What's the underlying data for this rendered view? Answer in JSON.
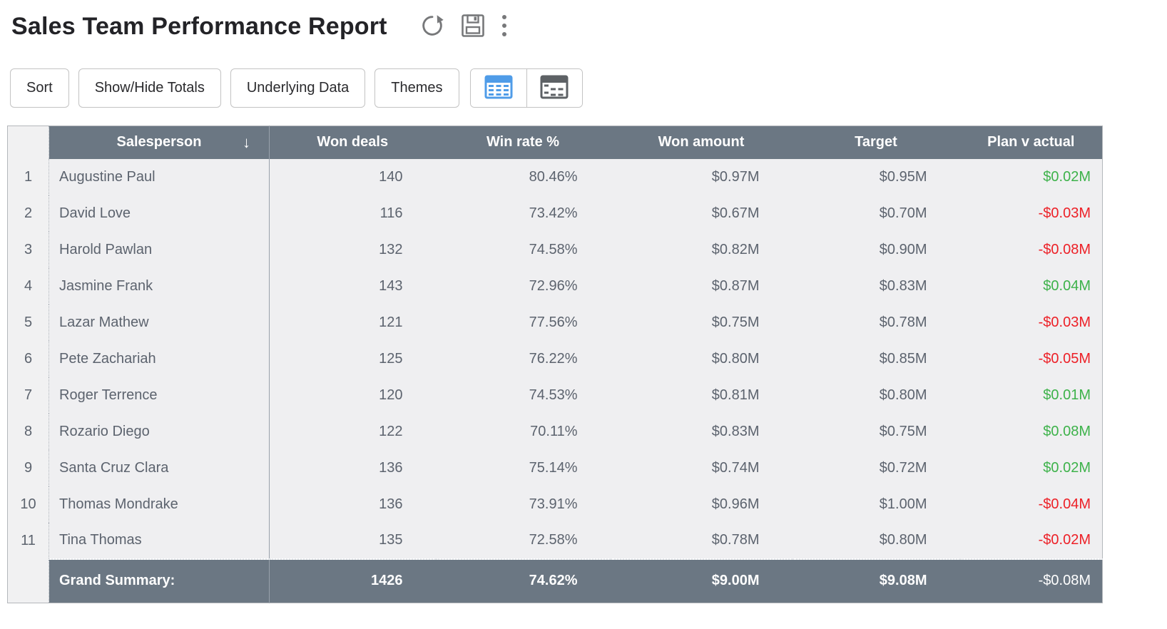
{
  "header": {
    "title": "Sales Team Performance Report",
    "icons": [
      "refresh",
      "save",
      "more-options"
    ]
  },
  "toolbar": {
    "buttons": [
      "Sort",
      "Show/Hide Totals",
      "Underlying Data",
      "Themes"
    ],
    "view_toggle": [
      "flat-table-view",
      "pivot-table-view"
    ],
    "active_view": "flat-table-view"
  },
  "colors": {
    "header_bg": "#6b7783",
    "positive": "#3db24a",
    "negative": "#ed2027",
    "active_view_icon": "#4f9ce8",
    "inactive_view_icon": "#5d6165"
  },
  "table": {
    "columns": [
      {
        "label": "Salesperson",
        "sort": "desc"
      },
      {
        "label": "Won deals"
      },
      {
        "label": "Win rate %"
      },
      {
        "label": "Won amount"
      },
      {
        "label": "Target"
      },
      {
        "label": "Plan v actual"
      }
    ],
    "rows": [
      {
        "num": "1",
        "salesperson": "Augustine Paul",
        "won_deals": "140",
        "win_rate": "80.46%",
        "won_amount": "$0.97M",
        "target": "$0.95M",
        "plan_v_actual": "$0.02M"
      },
      {
        "num": "2",
        "salesperson": "David Love",
        "won_deals": "116",
        "win_rate": "73.42%",
        "won_amount": "$0.67M",
        "target": "$0.70M",
        "plan_v_actual": "-$0.03M"
      },
      {
        "num": "3",
        "salesperson": "Harold Pawlan",
        "won_deals": "132",
        "win_rate": "74.58%",
        "won_amount": "$0.82M",
        "target": "$0.90M",
        "plan_v_actual": "-$0.08M"
      },
      {
        "num": "4",
        "salesperson": "Jasmine Frank",
        "won_deals": "143",
        "win_rate": "72.96%",
        "won_amount": "$0.87M",
        "target": "$0.83M",
        "plan_v_actual": "$0.04M"
      },
      {
        "num": "5",
        "salesperson": "Lazar Mathew",
        "won_deals": "121",
        "win_rate": "77.56%",
        "won_amount": "$0.75M",
        "target": "$0.78M",
        "plan_v_actual": "-$0.03M"
      },
      {
        "num": "6",
        "salesperson": "Pete Zachariah",
        "won_deals": "125",
        "win_rate": "76.22%",
        "won_amount": "$0.80M",
        "target": "$0.85M",
        "plan_v_actual": "-$0.05M"
      },
      {
        "num": "7",
        "salesperson": "Roger Terrence",
        "won_deals": "120",
        "win_rate": "74.53%",
        "won_amount": "$0.81M",
        "target": "$0.80M",
        "plan_v_actual": "$0.01M"
      },
      {
        "num": "8",
        "salesperson": "Rozario Diego",
        "won_deals": "122",
        "win_rate": "70.11%",
        "won_amount": "$0.83M",
        "target": "$0.75M",
        "plan_v_actual": "$0.08M"
      },
      {
        "num": "9",
        "salesperson": "Santa Cruz Clara",
        "won_deals": "136",
        "win_rate": "75.14%",
        "won_amount": "$0.74M",
        "target": "$0.72M",
        "plan_v_actual": "$0.02M"
      },
      {
        "num": "10",
        "salesperson": "Thomas Mondrake",
        "won_deals": "136",
        "win_rate": "73.91%",
        "won_amount": "$0.96M",
        "target": "$1.00M",
        "plan_v_actual": "-$0.04M"
      },
      {
        "num": "11",
        "salesperson": "Tina Thomas",
        "won_deals": "135",
        "win_rate": "72.58%",
        "won_amount": "$0.78M",
        "target": "$0.80M",
        "plan_v_actual": "-$0.02M"
      }
    ],
    "summary": {
      "label": "Grand Summary:",
      "won_deals": "1426",
      "win_rate": "74.62%",
      "won_amount": "$9.00M",
      "target": "$9.08M",
      "plan_v_actual": "-$0.08M"
    }
  }
}
